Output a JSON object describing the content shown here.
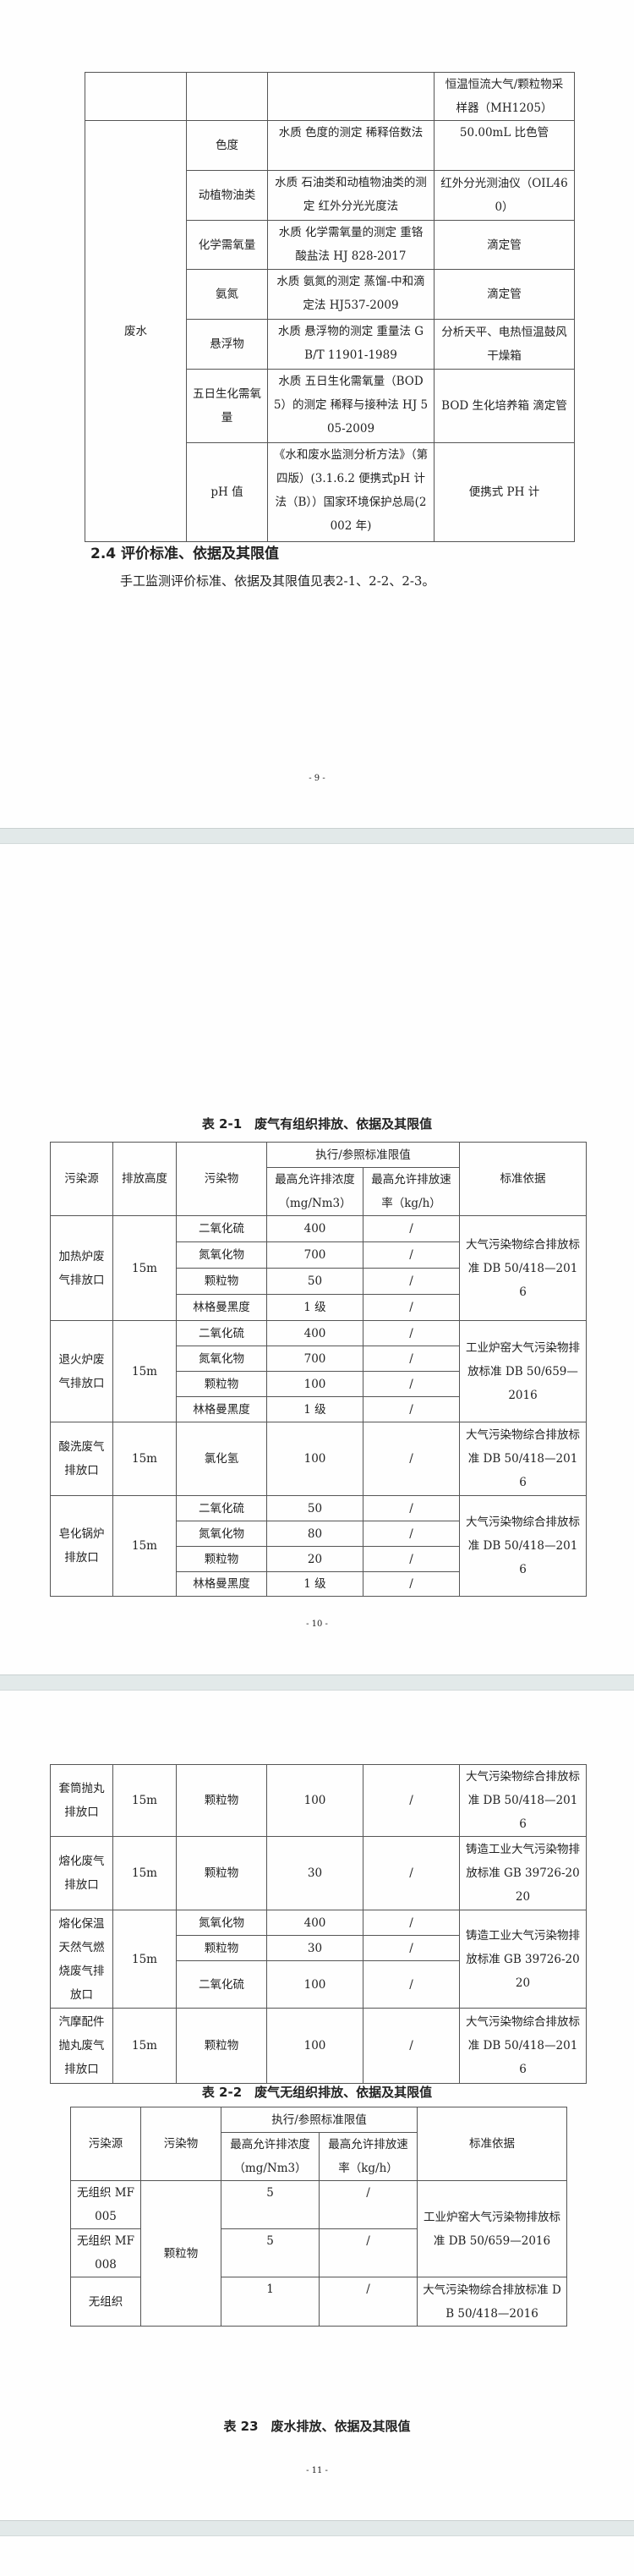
{
  "page1": {
    "table": {
      "continuation_instrument": "恒温恒流大气/颗粒物采样器（MH1205）",
      "category": "废水",
      "items": [
        {
          "item": "色度",
          "method": "水质 色度的测定 稀释倍数法",
          "instrument": "50.00mL 比色管"
        },
        {
          "item": "动植物油类",
          "method": "水质 石油类和动植物油类的测定 红外分光光度法",
          "instrument": "红外分光测油仪（OIL460）"
        },
        {
          "item": "化学需氧量",
          "method": "水质 化学需氧量的测定 重铬酸盐法 HJ 828-2017",
          "instrument": "滴定管"
        },
        {
          "item": "氨氮",
          "method": "水质 氨氮的测定 蒸馏-中和滴定法 HJ537-2009",
          "instrument": "滴定管"
        },
        {
          "item": "悬浮物",
          "method": "水质 悬浮物的测定 重量法 GB/T 11901-1989",
          "instrument": "分析天平、电热恒温鼓风干燥箱"
        },
        {
          "item": "五日生化需氧量",
          "method": "水质 五日生化需氧量（BOD5）的测定 稀释与接种法 HJ 505-2009",
          "instrument": "BOD 生化培养箱 滴定管"
        },
        {
          "item": "pH 值",
          "method": "《水和废水监测分析方法》（第四版）(3.1.6.2 便携式pH 计法（B））国家环境保护总局(2002 年)",
          "instrument": "便携式 PH 计"
        }
      ]
    },
    "section_heading": "2.4  评价标准、依据及其限值",
    "paragraph": "手工监测评价标准、依据及其限值见表2-1、2-2、2-3。",
    "page_number": "- 9 -"
  },
  "table_2_1_headers": {
    "source": "污染源",
    "height": "排放高度",
    "pollutant": "污染物",
    "limit_group": "执行/参照标准限值",
    "concentration": "最高允许排浓度（mg/Nm3）",
    "rate": "最高允许排放速率（kg/h）",
    "standard": "标准依据"
  },
  "page2": {
    "caption": "表 2-1　废气有组织排放、依据及其限值",
    "groups": [
      {
        "source": "加热炉废气排放口",
        "height": "15m",
        "standard": "大气污染物综合排放标准 DB 50/418—2016",
        "pollutants": [
          {
            "name": "二氧化硫",
            "concentration": "400",
            "rate": "/"
          },
          {
            "name": "氮氧化物",
            "concentration": "700",
            "rate": "/"
          },
          {
            "name": "颗粒物",
            "concentration": "50",
            "rate": "/"
          },
          {
            "name": "林格曼黑度",
            "concentration": "1 级",
            "rate": "/"
          }
        ]
      },
      {
        "source": "退火炉废气排放口",
        "height": "15m",
        "standard": "工业炉窑大气污染物排放标准 DB 50/659—2016",
        "pollutants": [
          {
            "name": "二氧化硫",
            "concentration": "400",
            "rate": "/"
          },
          {
            "name": "氮氧化物",
            "concentration": "700",
            "rate": "/"
          },
          {
            "name": "颗粒物",
            "concentration": "100",
            "rate": "/"
          },
          {
            "name": "林格曼黑度",
            "concentration": "1 级",
            "rate": "/"
          }
        ]
      },
      {
        "source": "酸洗废气排放口",
        "height": "15m",
        "standard": "大气污染物综合排放标准 DB 50/418—2016",
        "pollutants": [
          {
            "name": "氯化氢",
            "concentration": "100",
            "rate": "/"
          }
        ]
      },
      {
        "source": "皂化锅炉排放口",
        "height": "15m",
        "standard": "大气污染物综合排放标准 DB 50/418—2016",
        "pollutants": [
          {
            "name": "二氧化硫",
            "concentration": "50",
            "rate": "/"
          },
          {
            "name": "氮氧化物",
            "concentration": "80",
            "rate": "/"
          },
          {
            "name": "颗粒物",
            "concentration": "20",
            "rate": "/"
          },
          {
            "name": "林格曼黑度",
            "concentration": "1 级",
            "rate": "/"
          }
        ]
      }
    ],
    "page_number": "- 10 -"
  },
  "page3": {
    "groups": [
      {
        "source": "套筒抛丸排放口",
        "height": "15m",
        "standard": "大气污染物综合排放标准 DB 50/418—2016",
        "pollutants": [
          {
            "name": "颗粒物",
            "concentration": "100",
            "rate": "/"
          }
        ]
      },
      {
        "source": "熔化废气排放口",
        "height": "15m",
        "standard": "铸造工业大气污染物排放标准 GB 39726-2020",
        "pollutants": [
          {
            "name": "颗粒物",
            "concentration": "30",
            "rate": "/"
          }
        ]
      },
      {
        "source": "熔化保温天然气燃烧废气排放口",
        "height": "15m",
        "standard": "铸造工业大气污染物排放标准 GB 39726-2020",
        "pollutants": [
          {
            "name": "氮氧化物",
            "concentration": "400",
            "rate": "/"
          },
          {
            "name": "颗粒物",
            "concentration": "30",
            "rate": "/"
          },
          {
            "name": "二氧化硫",
            "concentration": "100",
            "rate": "/"
          }
        ]
      },
      {
        "source": "汽摩配件抛丸废气排放口",
        "height": "15m",
        "standard": "大气污染物综合排放标准 DB 50/418—2016",
        "pollutants": [
          {
            "name": "颗粒物",
            "concentration": "100",
            "rate": "/"
          }
        ]
      }
    ],
    "table_2_2": {
      "caption": "表 2-2　废气无组织排放、依据及其限值",
      "headers": {
        "source": "污染源",
        "pollutant": "污染物",
        "limit_group": "执行/参照标准限值",
        "concentration": "最高允许排浓度（mg/Nm3）",
        "rate": "最高允许排放速率（kg/h）",
        "standard": "标准依据"
      },
      "pollutant": "颗粒物",
      "groups": [
        {
          "standard": "工业炉窑大气污染物排放标准 DB 50/659—2016",
          "sources": [
            {
              "source": "无组织 MF005",
              "concentration": "5",
              "rate": "/"
            },
            {
              "source": "无组织 MF008",
              "concentration": "5",
              "rate": "/"
            }
          ]
        },
        {
          "standard": "大气污染物综合排放标准 DB 50/418—2016",
          "sources": [
            {
              "source": "无组织",
              "concentration": "1",
              "rate": "/"
            }
          ]
        }
      ]
    },
    "table_2_3_caption": "表 23　废水排放、依据及其限值",
    "page_number": "- 11 -"
  }
}
